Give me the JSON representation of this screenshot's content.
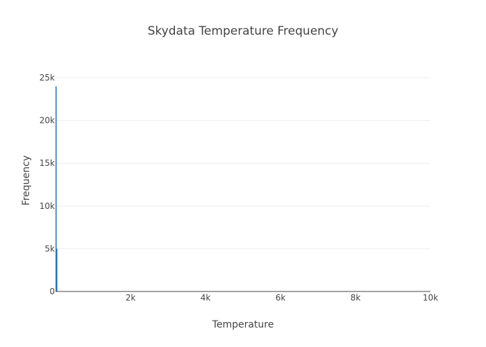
{
  "chart_data": {
    "type": "bar",
    "title": "Skydata Temperature Frequency",
    "xlabel": "Temperature",
    "ylabel": "Frequency",
    "xlim": [
      0,
      10000
    ],
    "ylim": [
      0,
      25000
    ],
    "x_ticks": [
      2000,
      4000,
      6000,
      8000,
      10000
    ],
    "x_tick_labels": [
      "2k",
      "4k",
      "6k",
      "8k",
      "10k"
    ],
    "y_ticks": [
      0,
      5000,
      10000,
      15000,
      20000,
      25000
    ],
    "y_tick_labels": [
      "0",
      "5k",
      "10k",
      "15k",
      "20k",
      "25k"
    ],
    "grid": true,
    "legend": "none",
    "bar_color": "#1f77b4",
    "series": [
      {
        "bins": [
          {
            "x0": 0,
            "x1": 20,
            "value": 24000
          },
          {
            "x0": 20,
            "x1": 40,
            "value": 5000
          }
        ]
      }
    ]
  }
}
